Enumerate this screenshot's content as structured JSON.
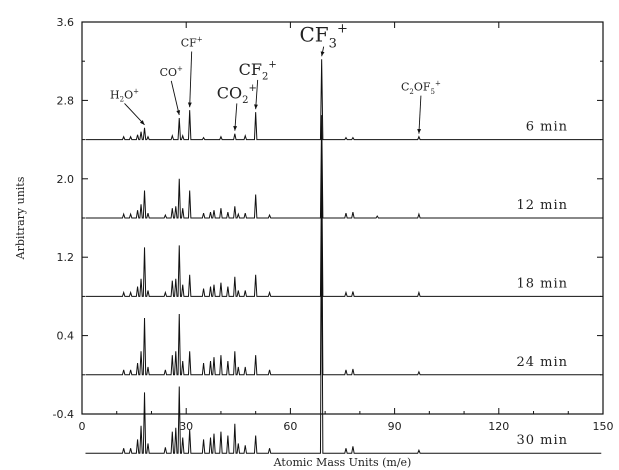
{
  "chart_data": {
    "type": "line",
    "title": "",
    "xlabel": "Atomic Mass Units (m/e)",
    "ylabel": "Arbitrary units",
    "xlim": [
      0,
      150
    ],
    "ylim": [
      -0.4,
      3.6
    ],
    "xticks": [
      0,
      30,
      60,
      90,
      120,
      150
    ],
    "xtick_labels": [
      "0",
      "30",
      "60",
      "90",
      "120",
      "150"
    ],
    "yticks": [
      -0.4,
      0.4,
      1.2,
      2.0,
      2.8,
      3.6
    ],
    "ytick_labels": [
      "-0.4",
      "0.4",
      "1.2",
      "2.0",
      "2.8",
      "3.6"
    ],
    "grid": false,
    "series": [
      {
        "name": "6 min",
        "baseline": 2.4,
        "peaks": [
          [
            12,
            0.03
          ],
          [
            14,
            0.03
          ],
          [
            16,
            0.05
          ],
          [
            17,
            0.08
          ],
          [
            18,
            0.12
          ],
          [
            19,
            0.03
          ],
          [
            26,
            0.04
          ],
          [
            28,
            0.22
          ],
          [
            29,
            0.04
          ],
          [
            31,
            0.3
          ],
          [
            35,
            0.02
          ],
          [
            40,
            0.03
          ],
          [
            44,
            0.06
          ],
          [
            47,
            0.04
          ],
          [
            50,
            0.28
          ],
          [
            69,
            0.82
          ],
          [
            76,
            0.02
          ],
          [
            78,
            0.02
          ],
          [
            97,
            0.03
          ]
        ]
      },
      {
        "name": "12 min",
        "baseline": 1.6,
        "peaks": [
          [
            12,
            0.04
          ],
          [
            14,
            0.04
          ],
          [
            16,
            0.08
          ],
          [
            17,
            0.14
          ],
          [
            18,
            0.28
          ],
          [
            19,
            0.05
          ],
          [
            24,
            0.03
          ],
          [
            26,
            0.1
          ],
          [
            27,
            0.12
          ],
          [
            28,
            0.4
          ],
          [
            29,
            0.1
          ],
          [
            31,
            0.28
          ],
          [
            35,
            0.05
          ],
          [
            37,
            0.06
          ],
          [
            38,
            0.08
          ],
          [
            40,
            0.1
          ],
          [
            42,
            0.06
          ],
          [
            44,
            0.12
          ],
          [
            45,
            0.04
          ],
          [
            47,
            0.05
          ],
          [
            50,
            0.24
          ],
          [
            54,
            0.03
          ],
          [
            69,
            1.05
          ],
          [
            76,
            0.05
          ],
          [
            78,
            0.06
          ],
          [
            85,
            0.02
          ],
          [
            97,
            0.04
          ]
        ]
      },
      {
        "name": "18 min",
        "baseline": 0.8,
        "peaks": [
          [
            12,
            0.04
          ],
          [
            14,
            0.04
          ],
          [
            16,
            0.1
          ],
          [
            17,
            0.18
          ],
          [
            18,
            0.5
          ],
          [
            19,
            0.06
          ],
          [
            24,
            0.04
          ],
          [
            26,
            0.16
          ],
          [
            27,
            0.18
          ],
          [
            28,
            0.52
          ],
          [
            29,
            0.12
          ],
          [
            31,
            0.22
          ],
          [
            35,
            0.08
          ],
          [
            37,
            0.1
          ],
          [
            38,
            0.12
          ],
          [
            40,
            0.14
          ],
          [
            42,
            0.1
          ],
          [
            44,
            0.2
          ],
          [
            45,
            0.06
          ],
          [
            47,
            0.06
          ],
          [
            50,
            0.22
          ],
          [
            54,
            0.04
          ],
          [
            69,
            1.4
          ],
          [
            76,
            0.04
          ],
          [
            78,
            0.05
          ],
          [
            97,
            0.04
          ]
        ]
      },
      {
        "name": "24 min",
        "baseline": 0.0,
        "peaks": [
          [
            12,
            0.05
          ],
          [
            14,
            0.05
          ],
          [
            16,
            0.12
          ],
          [
            17,
            0.24
          ],
          [
            18,
            0.58
          ],
          [
            19,
            0.08
          ],
          [
            24,
            0.05
          ],
          [
            26,
            0.2
          ],
          [
            27,
            0.24
          ],
          [
            28,
            0.62
          ],
          [
            29,
            0.14
          ],
          [
            31,
            0.24
          ],
          [
            35,
            0.12
          ],
          [
            37,
            0.14
          ],
          [
            38,
            0.18
          ],
          [
            40,
            0.2
          ],
          [
            42,
            0.14
          ],
          [
            44,
            0.24
          ],
          [
            45,
            0.08
          ],
          [
            47,
            0.08
          ],
          [
            50,
            0.2
          ],
          [
            54,
            0.05
          ],
          [
            69,
            1.85
          ],
          [
            76,
            0.05
          ],
          [
            78,
            0.06
          ],
          [
            97,
            0.03
          ]
        ]
      },
      {
        "name": "30 min",
        "baseline": -0.8,
        "peaks": [
          [
            12,
            0.05
          ],
          [
            14,
            0.05
          ],
          [
            16,
            0.14
          ],
          [
            17,
            0.28
          ],
          [
            18,
            0.62
          ],
          [
            19,
            0.1
          ],
          [
            24,
            0.06
          ],
          [
            26,
            0.22
          ],
          [
            27,
            0.26
          ],
          [
            28,
            0.68
          ],
          [
            29,
            0.16
          ],
          [
            31,
            0.24
          ],
          [
            35,
            0.14
          ],
          [
            37,
            0.16
          ],
          [
            38,
            0.2
          ],
          [
            40,
            0.22
          ],
          [
            42,
            0.18
          ],
          [
            44,
            0.3
          ],
          [
            45,
            0.1
          ],
          [
            47,
            0.08
          ],
          [
            50,
            0.18
          ],
          [
            54,
            0.05
          ],
          [
            69,
            2.4
          ],
          [
            76,
            0.05
          ],
          [
            78,
            0.07
          ],
          [
            97,
            0.03
          ]
        ]
      }
    ],
    "annotations": [
      {
        "label": "H2O+",
        "text_base": "H",
        "sub": "2",
        "rest": "O",
        "sup": "+",
        "x": 18,
        "y_text": 2.82,
        "size": "small"
      },
      {
        "label": "CO+",
        "text_base": "CO",
        "sub": "",
        "rest": "",
        "sup": "+",
        "x": 28,
        "y_text": 3.05,
        "size": "small"
      },
      {
        "label": "CF+",
        "text_base": "CF",
        "sub": "",
        "rest": "",
        "sup": "+",
        "x": 31,
        "y_text": 3.35,
        "size": "small"
      },
      {
        "label": "CO2+",
        "text_base": "CO",
        "sub": "2",
        "rest": "",
        "sup": "+",
        "x": 44,
        "y_text": 2.82,
        "size": "large"
      },
      {
        "label": "CF2+",
        "text_base": "CF",
        "sub": "2",
        "rest": "",
        "sup": "+",
        "x": 50,
        "y_text": 3.06,
        "size": "large"
      },
      {
        "label": "CF3+",
        "text_base": "CF",
        "sub": "3",
        "rest": "",
        "sup": "+",
        "x": 69,
        "y_text": 3.4,
        "size": "xlarge"
      },
      {
        "label": "C2OF5+",
        "text_base": "C",
        "sub": "2",
        "rest": "OF",
        "sub2": "5",
        "sup": "+",
        "x": 97,
        "y_text": 2.9,
        "size": "small"
      }
    ]
  }
}
